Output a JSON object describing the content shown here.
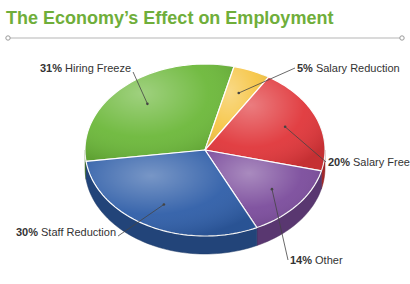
{
  "chart_data": {
    "type": "pie",
    "title": "The Economy’s Effect on Employment",
    "categories": [
      "Hiring Freeze",
      "Salary Reduction",
      "Salary Freeze",
      "Other",
      "Staff Reduction"
    ],
    "values": [
      31,
      5,
      20,
      14,
      30
    ],
    "value_labels": [
      "31%",
      "5%",
      "20%",
      "14%",
      "30%"
    ],
    "colors": [
      "#6cb83a",
      "#f6c545",
      "#e0363a",
      "#7b4c9c",
      "#2f5ea8"
    ],
    "data_labels": true
  }
}
